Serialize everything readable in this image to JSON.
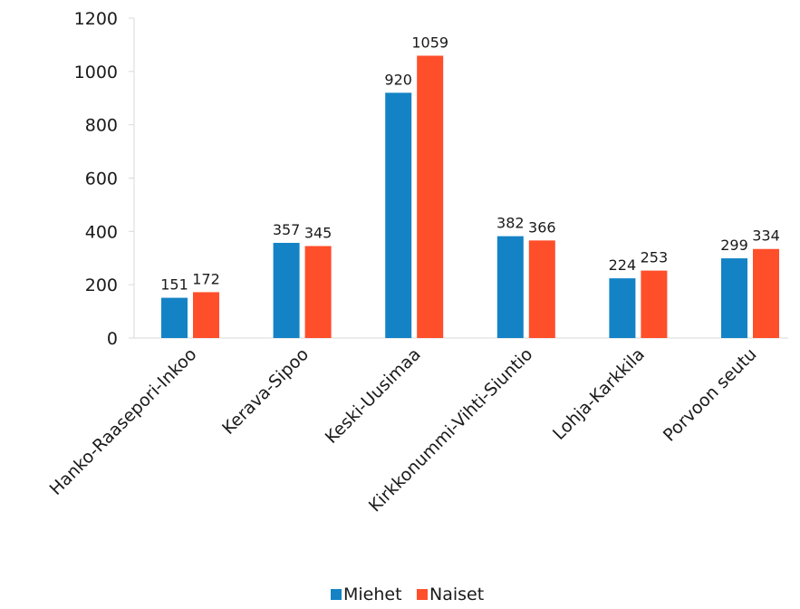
{
  "chart_data": {
    "type": "bar",
    "categories": [
      "Hanko-Raasepori-Inkoo",
      "Kerava-Sipoo",
      "Keski-Uusimaa",
      "Kirkkonummi-Vihti-Siuntio",
      "Lohja-Karkkila",
      "Porvoon seutu"
    ],
    "series": [
      {
        "name": "Miehet",
        "color": "#1483C5",
        "values": [
          151,
          357,
          920,
          382,
          224,
          299
        ]
      },
      {
        "name": "Naiset",
        "color": "#FF4E2A",
        "values": [
          172,
          345,
          1059,
          366,
          253,
          334
        ]
      }
    ],
    "title": "",
    "xlabel": "",
    "ylabel": "",
    "ylim": [
      0,
      1200
    ],
    "yticks": [
      "0",
      "200",
      "400",
      "600",
      "800",
      "1000",
      "1200"
    ],
    "grid": false,
    "legend": "bottom",
    "data_labels": true
  }
}
